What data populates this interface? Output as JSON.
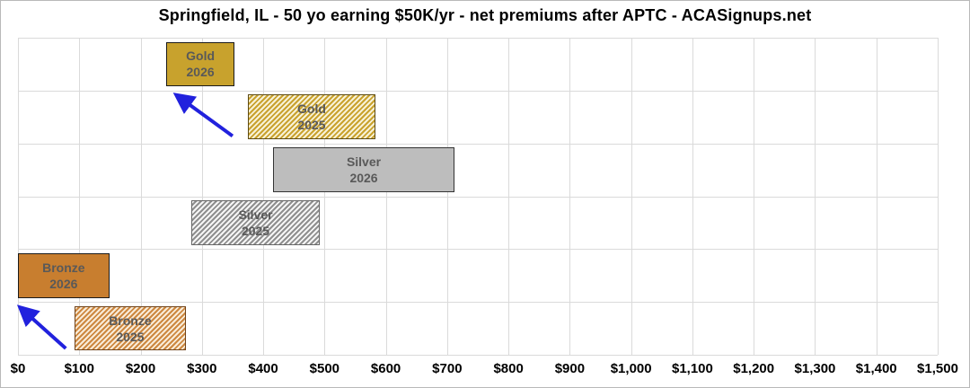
{
  "chart_data": {
    "type": "bar",
    "variant": "horizontal-floating-range",
    "title": "Springfield, IL - 50 yo earning $50K/yr - net premiums after APTC - ACASignups.net",
    "xlabel": "",
    "ylabel": "",
    "xlim": [
      0,
      1500
    ],
    "tick_step": 100,
    "x_tick_values": [
      0,
      100,
      200,
      300,
      400,
      500,
      600,
      700,
      800,
      900,
      1000,
      1100,
      1200,
      1300,
      1400,
      1500
    ],
    "x_tick_labels": [
      "$0",
      "$100",
      "$200",
      "$300",
      "$400",
      "$500",
      "$600",
      "$700",
      "$800",
      "$900",
      "$1,000",
      "$1,100",
      "$1,200",
      "$1,300",
      "$1,400",
      "$1,500"
    ],
    "grid": true,
    "rows": 6,
    "bars": [
      {
        "id": "gold-2026",
        "plan": "Gold",
        "year": "2026",
        "row": 0,
        "min": 242,
        "max": 353,
        "style": "solid",
        "fill": "#c8a22d",
        "hatch_bg": "",
        "border": "#1a1a1a"
      },
      {
        "id": "gold-2025",
        "plan": "Gold",
        "year": "2025",
        "row": 1,
        "min": 375,
        "max": 583,
        "style": "hatched",
        "fill": "#c9a22e",
        "hatch_bg": "#f8f2d8",
        "border": "#5c4a14"
      },
      {
        "id": "silver-2026",
        "plan": "Silver",
        "year": "2026",
        "row": 2,
        "min": 416,
        "max": 712,
        "style": "solid",
        "fill": "#bdbdbd",
        "hatch_bg": "",
        "border": "#333333"
      },
      {
        "id": "silver-2025",
        "plan": "Silver",
        "year": "2025",
        "row": 3,
        "min": 283,
        "max": 492,
        "style": "hatched",
        "fill": "#8f8f8f",
        "hatch_bg": "#f6f6f6",
        "border": "#666666"
      },
      {
        "id": "bronze-2026",
        "plan": "Bronze",
        "year": "2026",
        "row": 4,
        "min": 0,
        "max": 149,
        "style": "solid",
        "fill": "#c87e2f",
        "hatch_bg": "",
        "border": "#1a1a1a"
      },
      {
        "id": "bronze-2025",
        "plan": "Bronze",
        "year": "2025",
        "row": 5,
        "min": 92,
        "max": 274,
        "style": "hatched",
        "fill": "#cd8840",
        "hatch_bg": "#f9ecd9",
        "border": "#70431a"
      }
    ],
    "annotations": [
      {
        "id": "arrow-gold",
        "type": "arrow",
        "color": "#2121dd",
        "from": {
          "x": 350,
          "row": 1.86
        },
        "to": {
          "x": 260,
          "row": 1.1
        }
      },
      {
        "id": "arrow-bronze",
        "type": "arrow",
        "color": "#2121dd",
        "from": {
          "x": 78,
          "row": 5.88
        },
        "to": {
          "x": 5,
          "row": 5.12
        }
      }
    ],
    "label_color": "#595959",
    "grid_color": "#dadada",
    "axis_text_color": "#000000",
    "legend": "none"
  }
}
